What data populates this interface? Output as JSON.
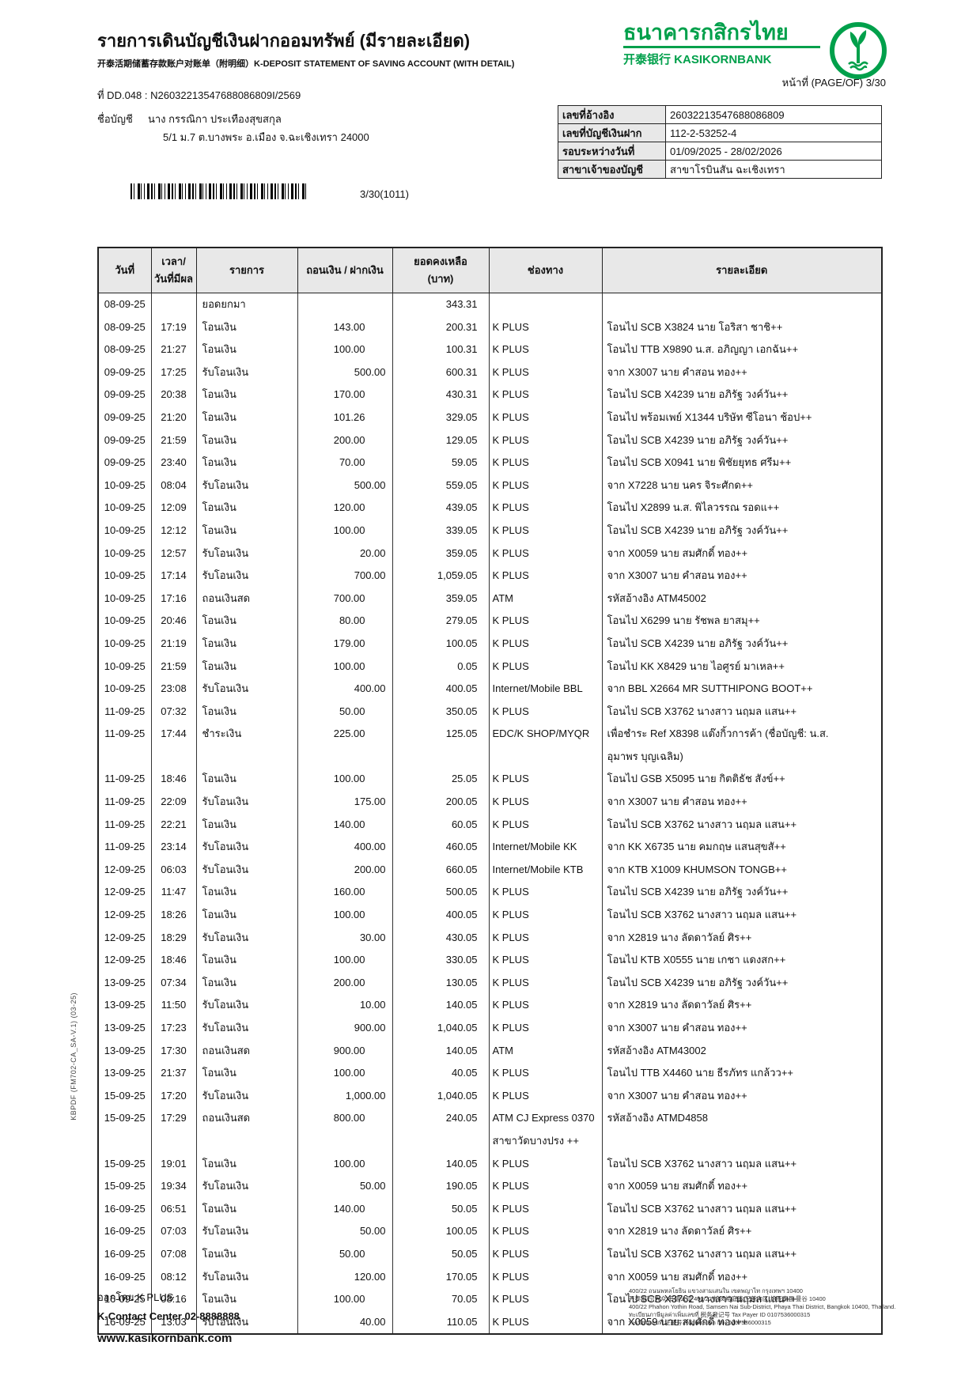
{
  "colors": {
    "brand_green": "#00A04B"
  },
  "header": {
    "title": "รายการเดินบัญชีเงินฝากออมทรัพย์ (มีรายละเอียด)",
    "subtitle": "开泰活期储蓄存款账户对账单（附明细）K-DEPOSIT STATEMENT OF SAVING ACCOUNT (WITH DETAIL)",
    "bank_name_th": "ธนาคารกสิกรไทย",
    "bank_name_sub": "开泰银行 KASIKORNBANK",
    "page_label": "หน้าที่ (PAGE/OF) 3/30",
    "doc_no": "ที่ DD.048 : N26032213547688086809I/2569",
    "account_name_label": "ชื่อบัญชี",
    "account_name": "นาง กรรณิกา ประเทืองสุขสกุล",
    "account_address": "5/1 ม.7 ต.บางพระ อ.เมือง จ.ฉะเชิงเทรา 24000",
    "barcode_text": "3/30(1011)"
  },
  "info_table": {
    "rows": [
      {
        "label": "เลขที่อ้างอิง",
        "value": "26032213547688086809"
      },
      {
        "label": "เลขที่บัญชีเงินฝาก",
        "value": "112-2-53252-4"
      },
      {
        "label": "รอบระหว่างวันที่",
        "value": "01/09/2025 - 28/02/2026"
      },
      {
        "label": "สาขาเจ้าของบัญชี",
        "value": "สาขาโรบินสัน ฉะเชิงเทรา"
      }
    ]
  },
  "table": {
    "headers": {
      "date": "วันที่",
      "time1": "เวลา/",
      "time2": "วันที่มีผล",
      "desc": "รายการ",
      "amount": "ถอนเงิน / ฝากเงิน",
      "bal1": "ยอดคงเหลือ",
      "bal2": "(บาท)",
      "channel": "ช่องทาง",
      "detail": "รายละเอียด"
    },
    "rows": [
      {
        "date": "08-09-25",
        "time": "",
        "desc": "ยอดยกมา",
        "wd": "",
        "dp": "",
        "bal": "343.31",
        "ch": "",
        "dt": ""
      },
      {
        "date": "08-09-25",
        "time": "17:19",
        "desc": "โอนเงิน",
        "wd": "143.00",
        "dp": "",
        "bal": "200.31",
        "ch": "K PLUS",
        "dt": "โอนไป SCB X3824 นาย โอริสา ชาชิ++"
      },
      {
        "date": "08-09-25",
        "time": "21:27",
        "desc": "โอนเงิน",
        "wd": "100.00",
        "dp": "",
        "bal": "100.31",
        "ch": "K PLUS",
        "dt": "โอนไป TTB X9890 น.ส. อภิญญา เอกฉัน++"
      },
      {
        "date": "09-09-25",
        "time": "17:25",
        "desc": "รับโอนเงิน",
        "wd": "",
        "dp": "500.00",
        "bal": "600.31",
        "ch": "K PLUS",
        "dt": "จาก X3007 นาย คำสอน ทอง++"
      },
      {
        "date": "09-09-25",
        "time": "20:38",
        "desc": "โอนเงิน",
        "wd": "170.00",
        "dp": "",
        "bal": "430.31",
        "ch": "K PLUS",
        "dt": "โอนไป SCB X4239 นาย อภิรัฐ วงค์วัน++"
      },
      {
        "date": "09-09-25",
        "time": "21:20",
        "desc": "โอนเงิน",
        "wd": "101.26",
        "dp": "",
        "bal": "329.05",
        "ch": "K PLUS",
        "dt": "โอนไป พร้อมเพย์ X1344 บริษัท ซีโอนา ช้อป++"
      },
      {
        "date": "09-09-25",
        "time": "21:59",
        "desc": "โอนเงิน",
        "wd": "200.00",
        "dp": "",
        "bal": "129.05",
        "ch": "K PLUS",
        "dt": "โอนไป SCB X4239 นาย อภิรัฐ วงค์วัน++"
      },
      {
        "date": "09-09-25",
        "time": "23:40",
        "desc": "โอนเงิน",
        "wd": "70.00",
        "dp": "",
        "bal": "59.05",
        "ch": "K PLUS",
        "dt": "โอนไป SCB X0941 นาย พิชัยยุทธ ศรีม++"
      },
      {
        "date": "10-09-25",
        "time": "08:04",
        "desc": "รับโอนเงิน",
        "wd": "",
        "dp": "500.00",
        "bal": "559.05",
        "ch": "K PLUS",
        "dt": "จาก X7228 นาย นคร จิระศักด++"
      },
      {
        "date": "10-09-25",
        "time": "12:09",
        "desc": "โอนเงิน",
        "wd": "120.00",
        "dp": "",
        "bal": "439.05",
        "ch": "K PLUS",
        "dt": "โอนไป X2899 น.ส. พิไลวรรณ รอดแ++"
      },
      {
        "date": "10-09-25",
        "time": "12:12",
        "desc": "โอนเงิน",
        "wd": "100.00",
        "dp": "",
        "bal": "339.05",
        "ch": "K PLUS",
        "dt": "โอนไป SCB X4239 นาย อภิรัฐ วงค์วัน++"
      },
      {
        "date": "10-09-25",
        "time": "12:57",
        "desc": "รับโอนเงิน",
        "wd": "",
        "dp": "20.00",
        "bal": "359.05",
        "ch": "K PLUS",
        "dt": "จาก X0059 นาย สมศักดิ์ ทอง++"
      },
      {
        "date": "10-09-25",
        "time": "17:14",
        "desc": "รับโอนเงิน",
        "wd": "",
        "dp": "700.00",
        "bal": "1,059.05",
        "ch": "K PLUS",
        "dt": "จาก X3007 นาย คำสอน ทอง++"
      },
      {
        "date": "10-09-25",
        "time": "17:16",
        "desc": "ถอนเงินสด",
        "wd": "700.00",
        "dp": "",
        "bal": "359.05",
        "ch": "ATM",
        "dt": "รหัสอ้างอิง ATM45002"
      },
      {
        "date": "10-09-25",
        "time": "20:46",
        "desc": "โอนเงิน",
        "wd": "80.00",
        "dp": "",
        "bal": "279.05",
        "ch": "K PLUS",
        "dt": "โอนไป X6299 นาย รัชพล ยาสมุ++"
      },
      {
        "date": "10-09-25",
        "time": "21:19",
        "desc": "โอนเงิน",
        "wd": "179.00",
        "dp": "",
        "bal": "100.05",
        "ch": "K PLUS",
        "dt": "โอนไป SCB X4239 นาย อภิรัฐ วงค์วัน++"
      },
      {
        "date": "10-09-25",
        "time": "21:59",
        "desc": "โอนเงิน",
        "wd": "100.00",
        "dp": "",
        "bal": "0.05",
        "ch": "K PLUS",
        "dt": "โอนไป KK X8429 นาย ไอศูรย์ มาเหล++"
      },
      {
        "date": "10-09-25",
        "time": "23:08",
        "desc": "รับโอนเงิน",
        "wd": "",
        "dp": "400.00",
        "bal": "400.05",
        "ch": "Internet/Mobile BBL",
        "dt": "จาก BBL X2664 MR SUTTHIPONG BOOT++"
      },
      {
        "date": "11-09-25",
        "time": "07:32",
        "desc": "โอนเงิน",
        "wd": "50.00",
        "dp": "",
        "bal": "350.05",
        "ch": "K PLUS",
        "dt": "โอนไป SCB X3762 นางสาว นฤมล แสน++"
      },
      {
        "date": "11-09-25",
        "time": "17:44",
        "desc": "ชำระเงิน",
        "wd": "225.00",
        "dp": "",
        "bal": "125.05",
        "ch": "EDC/K SHOP/MYQR",
        "dt": "เพื่อชำระ Ref X8398 แต๊งกิ้วการค้า (ชื่อบัญชี: น.ส.",
        "dt2": "อุมาพร บุญเฉลิม)"
      },
      {
        "date": "11-09-25",
        "time": "18:46",
        "desc": "โอนเงิน",
        "wd": "100.00",
        "dp": "",
        "bal": "25.05",
        "ch": "K PLUS",
        "dt": "โอนไป GSB X5095 นาย กิตติธัช สังข์++"
      },
      {
        "date": "11-09-25",
        "time": "22:09",
        "desc": "รับโอนเงิน",
        "wd": "",
        "dp": "175.00",
        "bal": "200.05",
        "ch": "K PLUS",
        "dt": "จาก X3007 นาย คำสอน ทอง++"
      },
      {
        "date": "11-09-25",
        "time": "22:21",
        "desc": "โอนเงิน",
        "wd": "140.00",
        "dp": "",
        "bal": "60.05",
        "ch": "K PLUS",
        "dt": "โอนไป SCB X3762 นางสาว นฤมล แสน++"
      },
      {
        "date": "11-09-25",
        "time": "23:14",
        "desc": "รับโอนเงิน",
        "wd": "",
        "dp": "400.00",
        "bal": "460.05",
        "ch": "Internet/Mobile KK",
        "dt": "จาก KK X6735 นาย คมกฤษ แสนสุขสั++"
      },
      {
        "date": "12-09-25",
        "time": "06:03",
        "desc": "รับโอนเงิน",
        "wd": "",
        "dp": "200.00",
        "bal": "660.05",
        "ch": "Internet/Mobile KTB",
        "dt": "จาก KTB X1009 KHUMSON TONGB++"
      },
      {
        "date": "12-09-25",
        "time": "11:47",
        "desc": "โอนเงิน",
        "wd": "160.00",
        "dp": "",
        "bal": "500.05",
        "ch": "K PLUS",
        "dt": "โอนไป SCB X4239 นาย อภิรัฐ วงค์วัน++"
      },
      {
        "date": "12-09-25",
        "time": "18:26",
        "desc": "โอนเงิน",
        "wd": "100.00",
        "dp": "",
        "bal": "400.05",
        "ch": "K PLUS",
        "dt": "โอนไป SCB X3762 นางสาว นฤมล แสน++"
      },
      {
        "date": "12-09-25",
        "time": "18:29",
        "desc": "รับโอนเงิน",
        "wd": "",
        "dp": "30.00",
        "bal": "430.05",
        "ch": "K PLUS",
        "dt": "จาก X2819 นาง ลัดดาวัลย์ ศิร++"
      },
      {
        "date": "12-09-25",
        "time": "18:46",
        "desc": "โอนเงิน",
        "wd": "100.00",
        "dp": "",
        "bal": "330.05",
        "ch": "K PLUS",
        "dt": "โอนไป KTB X0555 นาย เกชา แดงสก++"
      },
      {
        "date": "13-09-25",
        "time": "07:34",
        "desc": "โอนเงิน",
        "wd": "200.00",
        "dp": "",
        "bal": "130.05",
        "ch": "K PLUS",
        "dt": "โอนไป SCB X4239 นาย อภิรัฐ วงค์วัน++"
      },
      {
        "date": "13-09-25",
        "time": "11:50",
        "desc": "รับโอนเงิน",
        "wd": "",
        "dp": "10.00",
        "bal": "140.05",
        "ch": "K PLUS",
        "dt": "จาก X2819 นาง ลัดดาวัลย์ ศิร++"
      },
      {
        "date": "13-09-25",
        "time": "17:23",
        "desc": "รับโอนเงิน",
        "wd": "",
        "dp": "900.00",
        "bal": "1,040.05",
        "ch": "K PLUS",
        "dt": "จาก X3007 นาย คำสอน ทอง++"
      },
      {
        "date": "13-09-25",
        "time": "17:30",
        "desc": "ถอนเงินสด",
        "wd": "900.00",
        "dp": "",
        "bal": "140.05",
        "ch": "ATM",
        "dt": "รหัสอ้างอิง ATM43002"
      },
      {
        "date": "13-09-25",
        "time": "21:37",
        "desc": "โอนเงิน",
        "wd": "100.00",
        "dp": "",
        "bal": "40.05",
        "ch": "K PLUS",
        "dt": "โอนไป TTB X4460 นาย ธีรภัทร แกล้วว++"
      },
      {
        "date": "15-09-25",
        "time": "17:20",
        "desc": "รับโอนเงิน",
        "wd": "",
        "dp": "1,000.00",
        "bal": "1,040.05",
        "ch": "K PLUS",
        "dt": "จาก X3007 นาย คำสอน ทอง++"
      },
      {
        "date": "15-09-25",
        "time": "17:29",
        "desc": "ถอนเงินสด",
        "wd": "800.00",
        "dp": "",
        "bal": "240.05",
        "ch": "ATM CJ Express 0370",
        "ch2": "สาขาวัดบางปรง ++",
        "dt": "รหัสอ้างอิง ATMD4858"
      },
      {
        "date": "15-09-25",
        "time": "19:01",
        "desc": "โอนเงิน",
        "wd": "100.00",
        "dp": "",
        "bal": "140.05",
        "ch": "K PLUS",
        "dt": "โอนไป SCB X3762 นางสาว นฤมล แสน++"
      },
      {
        "date": "15-09-25",
        "time": "19:34",
        "desc": "รับโอนเงิน",
        "wd": "",
        "dp": "50.00",
        "bal": "190.05",
        "ch": "K PLUS",
        "dt": "จาก X0059 นาย สมศักดิ์ ทอง++"
      },
      {
        "date": "16-09-25",
        "time": "06:51",
        "desc": "โอนเงิน",
        "wd": "140.00",
        "dp": "",
        "bal": "50.05",
        "ch": "K PLUS",
        "dt": "โอนไป SCB X3762 นางสาว นฤมล แสน++"
      },
      {
        "date": "16-09-25",
        "time": "07:03",
        "desc": "รับโอนเงิน",
        "wd": "",
        "dp": "50.00",
        "bal": "100.05",
        "ch": "K PLUS",
        "dt": "จาก X2819 นาง ลัดดาวัลย์ ศิร++"
      },
      {
        "date": "16-09-25",
        "time": "07:08",
        "desc": "โอนเงิน",
        "wd": "50.00",
        "dp": "",
        "bal": "50.05",
        "ch": "K PLUS",
        "dt": "โอนไป SCB X3762 นางสาว นฤมล แสน++"
      },
      {
        "date": "16-09-25",
        "time": "08:12",
        "desc": "รับโอนเงิน",
        "wd": "",
        "dp": "120.00",
        "bal": "170.05",
        "ch": "K PLUS",
        "dt": "จาก X0059 นาย สมศักดิ์ ทอง++"
      },
      {
        "date": "16-09-25",
        "time": "08:16",
        "desc": "โอนเงิน",
        "wd": "100.00",
        "dp": "",
        "bal": "70.05",
        "ch": "K PLUS",
        "dt": "โอนไป SCB X3762 นางสาว นฤมล แสน++"
      },
      {
        "date": "16-09-25",
        "time": "13:03",
        "desc": "รับโอนเงิน",
        "wd": "",
        "dp": "40.00",
        "bal": "110.05",
        "ch": "K PLUS",
        "dt": "จาก X0059 นาย สมศักดิ์ ทอง++"
      }
    ]
  },
  "footer": {
    "issued_by": "ออกโดย K PLUS",
    "contact": "K-Contact Center 02-8888888",
    "website": "www.kasikornbank.com",
    "address_lines": [
      "400/22 ถนนพหลโยธิน แขวงสามเสนใน เขตพญาไท กรุงเทพฯ 10400",
      "开泰银行(大众)有限公司 400/22 拍凤裕庭路 三善内区 拍亚泰县 曼谷 10400",
      "400/22 Phahon Yothin Road, Samsen Nai Sub-District, Phaya Thai District, Bangkok 10400, Thailand.",
      "ทะเบียนภาษีมูลค่าเพิ่มเลขที่ 税务登记号 Tax Payer ID 0107536000315",
      "ทะเบียนเลขที่ 注册号 Registration No. 0107536000315"
    ]
  },
  "side_label": "KBPDF (FM702-CA_SA-V.1) (03-25)"
}
